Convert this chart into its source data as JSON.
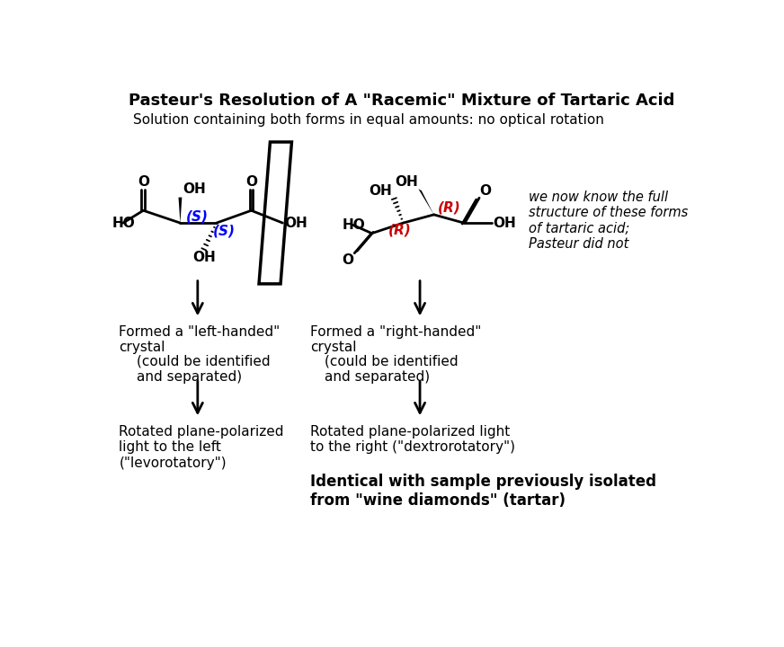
{
  "title": "Pasteur's Resolution of A \"Racemic\" Mixture of Tartaric Acid",
  "subtitle": "Solution containing both forms in equal amounts: no optical rotation",
  "bg_color": "#ffffff",
  "text_color": "#000000",
  "blue_color": "#0000ff",
  "red_color": "#cc0000",
  "title_fontsize": 13,
  "subtitle_fontsize": 11,
  "body_fontsize": 11,
  "note_fontsize": 10.5,
  "bold_fontsize": 12,
  "left_crystal_label": "Formed a \"left-handed\"\ncrystal",
  "right_crystal_label": "Formed a \"right-handed\"\ncrystal",
  "left_identified": "(could be identified\nand separated)",
  "right_identified": "(could be identified\nand separated)",
  "left_rotation": "Rotated plane-polarized\nlight to the left\n(\"levorotatory\")",
  "right_rotation": "Rotated plane-polarized light\nto the right (\"dextrorotatory\")",
  "bottom_note_line1": "Identical with sample previously isolated",
  "bottom_note_line2": "from \"wine diamonds\" (tartar)",
  "note_italic": "we now know the full\nstructure of these forms\nof tartaric acid;\nPasteur did not"
}
